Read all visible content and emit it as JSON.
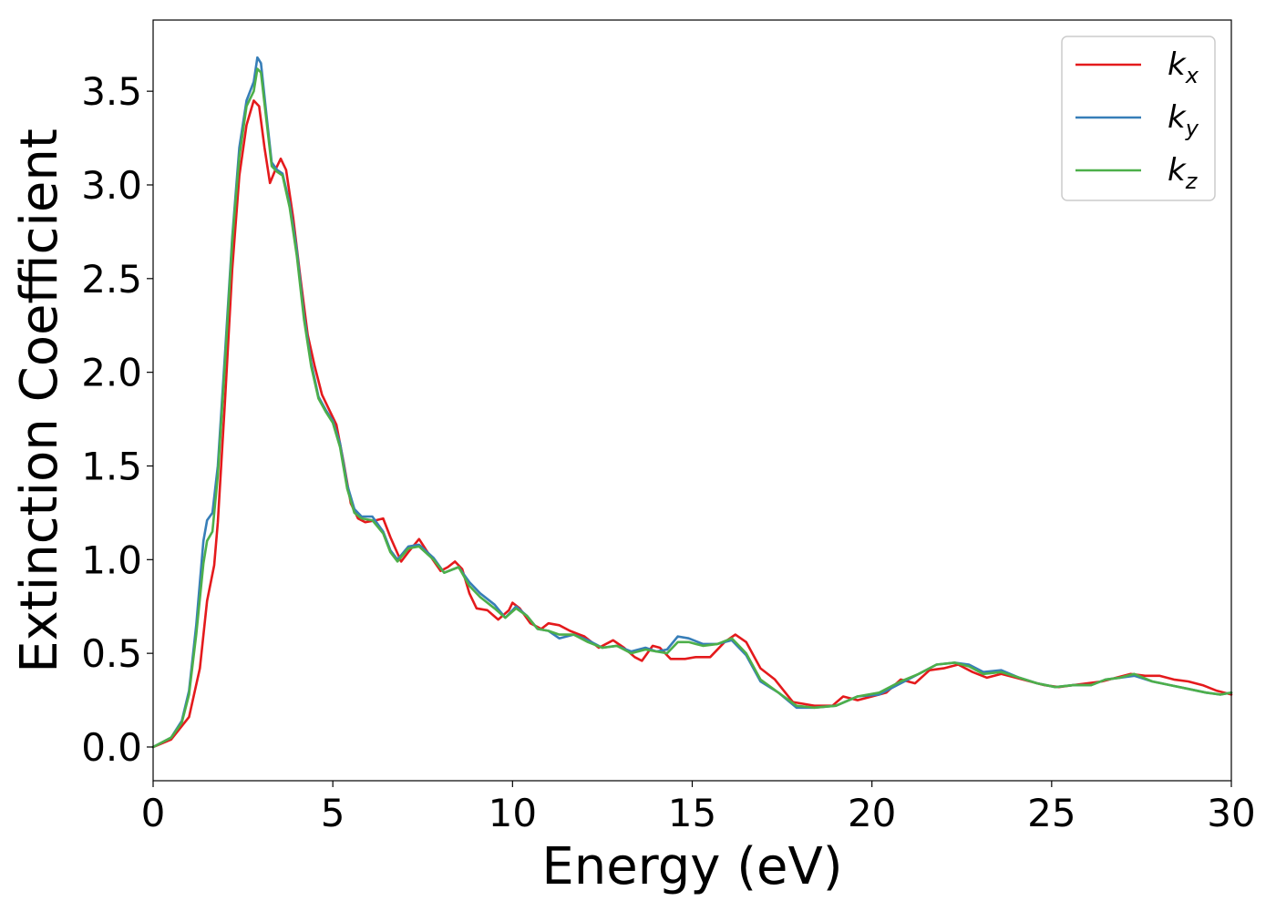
{
  "chart_data": {
    "type": "line",
    "xlabel": "Energy (eV)",
    "ylabel": "Extinction Coefficient",
    "xlim": [
      0,
      30
    ],
    "ylim": [
      -0.18,
      3.88
    ],
    "xticks": [
      0,
      5,
      10,
      15,
      20,
      25,
      30
    ],
    "xtick_labels": [
      "0",
      "5",
      "10",
      "15",
      "20",
      "25",
      "30"
    ],
    "yticks": [
      0.0,
      0.5,
      1.0,
      1.5,
      2.0,
      2.5,
      3.0,
      3.5
    ],
    "ytick_labels": [
      "0.0",
      "0.5",
      "1.0",
      "1.5",
      "2.0",
      "2.5",
      "3.0",
      "3.5"
    ],
    "grid": false,
    "legend_position": "top-right",
    "series": [
      {
        "name": "k",
        "subscript": "x",
        "color": "#e41a1c",
        "points": [
          [
            0,
            0
          ],
          [
            0.5,
            0.04
          ],
          [
            1.0,
            0.16
          ],
          [
            1.3,
            0.42
          ],
          [
            1.5,
            0.78
          ],
          [
            1.7,
            0.97
          ],
          [
            1.8,
            1.2
          ],
          [
            2.0,
            1.85
          ],
          [
            2.2,
            2.55
          ],
          [
            2.4,
            3.05
          ],
          [
            2.6,
            3.32
          ],
          [
            2.8,
            3.45
          ],
          [
            2.95,
            3.42
          ],
          [
            3.1,
            3.2
          ],
          [
            3.25,
            3.01
          ],
          [
            3.4,
            3.08
          ],
          [
            3.55,
            3.14
          ],
          [
            3.7,
            3.08
          ],
          [
            3.9,
            2.82
          ],
          [
            4.1,
            2.5
          ],
          [
            4.3,
            2.2
          ],
          [
            4.5,
            2.03
          ],
          [
            4.7,
            1.88
          ],
          [
            4.9,
            1.8
          ],
          [
            5.1,
            1.72
          ],
          [
            5.3,
            1.52
          ],
          [
            5.5,
            1.3
          ],
          [
            5.7,
            1.22
          ],
          [
            5.9,
            1.2
          ],
          [
            6.2,
            1.21
          ],
          [
            6.4,
            1.22
          ],
          [
            6.6,
            1.12
          ],
          [
            6.9,
            0.99
          ],
          [
            7.1,
            1.04
          ],
          [
            7.4,
            1.11
          ],
          [
            7.6,
            1.05
          ],
          [
            8.0,
            0.94
          ],
          [
            8.2,
            0.96
          ],
          [
            8.4,
            0.99
          ],
          [
            8.6,
            0.95
          ],
          [
            8.8,
            0.82
          ],
          [
            9.0,
            0.74
          ],
          [
            9.3,
            0.73
          ],
          [
            9.6,
            0.68
          ],
          [
            9.9,
            0.73
          ],
          [
            10.0,
            0.77
          ],
          [
            10.2,
            0.74
          ],
          [
            10.5,
            0.66
          ],
          [
            10.8,
            0.63
          ],
          [
            11.0,
            0.66
          ],
          [
            11.3,
            0.65
          ],
          [
            11.6,
            0.62
          ],
          [
            12.0,
            0.59
          ],
          [
            12.4,
            0.53
          ],
          [
            12.8,
            0.57
          ],
          [
            13.1,
            0.53
          ],
          [
            13.4,
            0.48
          ],
          [
            13.6,
            0.46
          ],
          [
            13.9,
            0.54
          ],
          [
            14.1,
            0.53
          ],
          [
            14.4,
            0.47
          ],
          [
            14.8,
            0.47
          ],
          [
            15.1,
            0.48
          ],
          [
            15.5,
            0.48
          ],
          [
            15.9,
            0.56
          ],
          [
            16.2,
            0.6
          ],
          [
            16.5,
            0.56
          ],
          [
            16.9,
            0.42
          ],
          [
            17.3,
            0.36
          ],
          [
            17.8,
            0.24
          ],
          [
            18.4,
            0.22
          ],
          [
            18.9,
            0.22
          ],
          [
            19.2,
            0.27
          ],
          [
            19.6,
            0.25
          ],
          [
            20.0,
            0.27
          ],
          [
            20.4,
            0.29
          ],
          [
            20.8,
            0.36
          ],
          [
            21.2,
            0.34
          ],
          [
            21.6,
            0.41
          ],
          [
            22.0,
            0.42
          ],
          [
            22.4,
            0.44
          ],
          [
            22.8,
            0.4
          ],
          [
            23.2,
            0.37
          ],
          [
            23.6,
            0.39
          ],
          [
            24.0,
            0.37
          ],
          [
            24.4,
            0.35
          ],
          [
            24.8,
            0.33
          ],
          [
            25.2,
            0.32
          ],
          [
            25.6,
            0.33
          ],
          [
            26.0,
            0.34
          ],
          [
            26.4,
            0.35
          ],
          [
            26.8,
            0.37
          ],
          [
            27.2,
            0.39
          ],
          [
            27.6,
            0.38
          ],
          [
            28.0,
            0.38
          ],
          [
            28.4,
            0.36
          ],
          [
            28.8,
            0.35
          ],
          [
            29.2,
            0.33
          ],
          [
            29.6,
            0.3
          ],
          [
            30.0,
            0.28
          ]
        ]
      },
      {
        "name": "k",
        "subscript": "y",
        "color": "#377eb8",
        "points": [
          [
            0,
            0
          ],
          [
            0.5,
            0.05
          ],
          [
            0.8,
            0.14
          ],
          [
            1.0,
            0.3
          ],
          [
            1.2,
            0.65
          ],
          [
            1.4,
            1.1
          ],
          [
            1.5,
            1.21
          ],
          [
            1.65,
            1.25
          ],
          [
            1.8,
            1.5
          ],
          [
            2.0,
            2.1
          ],
          [
            2.2,
            2.72
          ],
          [
            2.4,
            3.2
          ],
          [
            2.6,
            3.45
          ],
          [
            2.8,
            3.55
          ],
          [
            2.9,
            3.68
          ],
          [
            3.0,
            3.65
          ],
          [
            3.15,
            3.38
          ],
          [
            3.3,
            3.12
          ],
          [
            3.45,
            3.08
          ],
          [
            3.6,
            3.06
          ],
          [
            3.8,
            2.9
          ],
          [
            4.0,
            2.65
          ],
          [
            4.2,
            2.3
          ],
          [
            4.4,
            2.05
          ],
          [
            4.6,
            1.87
          ],
          [
            4.8,
            1.8
          ],
          [
            5.0,
            1.74
          ],
          [
            5.2,
            1.62
          ],
          [
            5.4,
            1.4
          ],
          [
            5.6,
            1.27
          ],
          [
            5.8,
            1.23
          ],
          [
            6.1,
            1.23
          ],
          [
            6.4,
            1.15
          ],
          [
            6.6,
            1.05
          ],
          [
            6.8,
            1.0
          ],
          [
            7.1,
            1.07
          ],
          [
            7.4,
            1.08
          ],
          [
            7.8,
            1.01
          ],
          [
            8.1,
            0.93
          ],
          [
            8.5,
            0.96
          ],
          [
            8.8,
            0.88
          ],
          [
            9.1,
            0.82
          ],
          [
            9.5,
            0.76
          ],
          [
            9.8,
            0.69
          ],
          [
            10.1,
            0.75
          ],
          [
            10.4,
            0.7
          ],
          [
            10.7,
            0.63
          ],
          [
            11.0,
            0.62
          ],
          [
            11.3,
            0.58
          ],
          [
            11.7,
            0.6
          ],
          [
            12.1,
            0.57
          ],
          [
            12.5,
            0.53
          ],
          [
            12.9,
            0.54
          ],
          [
            13.3,
            0.51
          ],
          [
            13.7,
            0.53
          ],
          [
            14.0,
            0.51
          ],
          [
            14.3,
            0.52
          ],
          [
            14.6,
            0.59
          ],
          [
            14.9,
            0.58
          ],
          [
            15.3,
            0.55
          ],
          [
            15.7,
            0.55
          ],
          [
            16.1,
            0.57
          ],
          [
            16.5,
            0.49
          ],
          [
            16.9,
            0.35
          ],
          [
            17.4,
            0.29
          ],
          [
            17.9,
            0.21
          ],
          [
            18.4,
            0.21
          ],
          [
            19.0,
            0.22
          ],
          [
            19.6,
            0.27
          ],
          [
            20.2,
            0.28
          ],
          [
            20.8,
            0.34
          ],
          [
            21.3,
            0.39
          ],
          [
            21.8,
            0.44
          ],
          [
            22.3,
            0.45
          ],
          [
            22.7,
            0.44
          ],
          [
            23.1,
            0.4
          ],
          [
            23.6,
            0.41
          ],
          [
            24.1,
            0.37
          ],
          [
            24.6,
            0.34
          ],
          [
            25.1,
            0.32
          ],
          [
            25.6,
            0.33
          ],
          [
            26.1,
            0.33
          ],
          [
            26.5,
            0.36
          ],
          [
            26.9,
            0.37
          ],
          [
            27.3,
            0.38
          ],
          [
            27.8,
            0.35
          ],
          [
            28.3,
            0.33
          ],
          [
            28.8,
            0.31
          ],
          [
            29.3,
            0.29
          ],
          [
            29.7,
            0.28
          ],
          [
            30.0,
            0.29
          ]
        ]
      },
      {
        "name": "k",
        "subscript": "z",
        "color": "#4daf4a",
        "points": [
          [
            0,
            0
          ],
          [
            0.5,
            0.05
          ],
          [
            0.8,
            0.13
          ],
          [
            1.0,
            0.28
          ],
          [
            1.2,
            0.6
          ],
          [
            1.4,
            0.98
          ],
          [
            1.5,
            1.1
          ],
          [
            1.65,
            1.15
          ],
          [
            1.8,
            1.45
          ],
          [
            2.0,
            2.05
          ],
          [
            2.2,
            2.7
          ],
          [
            2.4,
            3.15
          ],
          [
            2.6,
            3.42
          ],
          [
            2.8,
            3.5
          ],
          [
            2.9,
            3.62
          ],
          [
            3.0,
            3.6
          ],
          [
            3.15,
            3.35
          ],
          [
            3.3,
            3.1
          ],
          [
            3.45,
            3.07
          ],
          [
            3.6,
            3.05
          ],
          [
            3.8,
            2.88
          ],
          [
            4.0,
            2.62
          ],
          [
            4.2,
            2.28
          ],
          [
            4.4,
            2.03
          ],
          [
            4.6,
            1.86
          ],
          [
            4.8,
            1.79
          ],
          [
            5.0,
            1.73
          ],
          [
            5.2,
            1.6
          ],
          [
            5.4,
            1.38
          ],
          [
            5.6,
            1.25
          ],
          [
            5.8,
            1.22
          ],
          [
            6.1,
            1.21
          ],
          [
            6.4,
            1.14
          ],
          [
            6.6,
            1.04
          ],
          [
            6.8,
            0.99
          ],
          [
            7.1,
            1.06
          ],
          [
            7.4,
            1.07
          ],
          [
            7.8,
            1.0
          ],
          [
            8.1,
            0.93
          ],
          [
            8.5,
            0.96
          ],
          [
            8.8,
            0.86
          ],
          [
            9.1,
            0.8
          ],
          [
            9.5,
            0.74
          ],
          [
            9.8,
            0.69
          ],
          [
            10.1,
            0.74
          ],
          [
            10.4,
            0.7
          ],
          [
            10.7,
            0.63
          ],
          [
            11.0,
            0.62
          ],
          [
            11.3,
            0.6
          ],
          [
            11.7,
            0.6
          ],
          [
            12.1,
            0.56
          ],
          [
            12.5,
            0.53
          ],
          [
            12.9,
            0.54
          ],
          [
            13.3,
            0.5
          ],
          [
            13.7,
            0.52
          ],
          [
            14.0,
            0.51
          ],
          [
            14.3,
            0.5
          ],
          [
            14.6,
            0.56
          ],
          [
            14.9,
            0.56
          ],
          [
            15.3,
            0.54
          ],
          [
            15.7,
            0.55
          ],
          [
            16.1,
            0.58
          ],
          [
            16.5,
            0.5
          ],
          [
            16.9,
            0.36
          ],
          [
            17.4,
            0.29
          ],
          [
            17.9,
            0.22
          ],
          [
            18.4,
            0.21
          ],
          [
            19.0,
            0.22
          ],
          [
            19.6,
            0.27
          ],
          [
            20.2,
            0.29
          ],
          [
            20.8,
            0.35
          ],
          [
            21.3,
            0.39
          ],
          [
            21.8,
            0.44
          ],
          [
            22.3,
            0.45
          ],
          [
            22.7,
            0.43
          ],
          [
            23.1,
            0.39
          ],
          [
            23.6,
            0.4
          ],
          [
            24.1,
            0.37
          ],
          [
            24.6,
            0.34
          ],
          [
            25.1,
            0.32
          ],
          [
            25.6,
            0.33
          ],
          [
            26.1,
            0.33
          ],
          [
            26.5,
            0.36
          ],
          [
            26.9,
            0.37
          ],
          [
            27.3,
            0.39
          ],
          [
            27.8,
            0.35
          ],
          [
            28.3,
            0.33
          ],
          [
            28.8,
            0.31
          ],
          [
            29.3,
            0.29
          ],
          [
            29.7,
            0.28
          ],
          [
            30.0,
            0.29
          ]
        ]
      }
    ]
  }
}
